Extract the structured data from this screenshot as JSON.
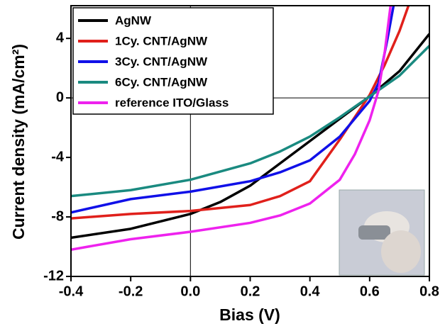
{
  "chart_data": {
    "type": "line",
    "xlabel": "Bias (V)",
    "ylabel": "Current density (mA/cm²)",
    "xlim": [
      -0.4,
      0.8
    ],
    "ylim": [
      -12,
      6.2
    ],
    "xticks": [
      -0.4,
      -0.2,
      {
        "value": 0,
        "label": "0.0"
      },
      0.2,
      0.4,
      0.6,
      0.8
    ],
    "yticks": [
      -12,
      -8,
      -4,
      0,
      4
    ],
    "legend": "upper left",
    "series": [
      {
        "name": "AgNW",
        "color": "#000000",
        "x": [
          -0.4,
          -0.2,
          0,
          0.1,
          0.2,
          0.3,
          0.4,
          0.5,
          0.6,
          0.7,
          0.8
        ],
        "values": [
          -9.4,
          -8.8,
          -7.8,
          -7.0,
          -5.9,
          -4.4,
          -2.9,
          -1.4,
          0.1,
          1.8,
          4.3
        ]
      },
      {
        "name": "1Cy. CNT/AgNW",
        "color": "#e0201b",
        "x": [
          -0.4,
          -0.2,
          0,
          0.2,
          0.3,
          0.4,
          0.5,
          0.55,
          0.6,
          0.65,
          0.7,
          0.73
        ],
        "values": [
          -8.1,
          -7.8,
          -7.6,
          -7.2,
          -6.6,
          -5.6,
          -2.8,
          -1.3,
          0.2,
          2.2,
          4.5,
          6.2
        ]
      },
      {
        "name": "3Cy. CNT/AgNW",
        "color": "#1010e8",
        "x": [
          -0.4,
          -0.2,
          0,
          0.2,
          0.3,
          0.4,
          0.5,
          0.55,
          0.6,
          0.63,
          0.66,
          0.68
        ],
        "values": [
          -7.7,
          -6.8,
          -6.3,
          -5.6,
          -5.0,
          -4.2,
          -2.6,
          -1.4,
          -0.2,
          1.0,
          4.0,
          6.2
        ]
      },
      {
        "name": "6Cy. CNT/AgNW",
        "color": "#1a8a80",
        "x": [
          -0.4,
          -0.2,
          0,
          0.2,
          0.3,
          0.4,
          0.5,
          0.6,
          0.7,
          0.8
        ],
        "values": [
          -6.6,
          -6.2,
          -5.5,
          -4.4,
          -3.6,
          -2.6,
          -1.3,
          0.1,
          1.5,
          3.5
        ]
      },
      {
        "name": "reference ITO/Glass",
        "color": "#ee22ee",
        "x": [
          -0.4,
          -0.2,
          0,
          0.2,
          0.3,
          0.4,
          0.5,
          0.55,
          0.6,
          0.63,
          0.65,
          0.67
        ],
        "values": [
          -10.2,
          -9.5,
          -9.0,
          -8.4,
          -7.9,
          -7.1,
          -5.5,
          -3.8,
          -1.5,
          0.5,
          3.0,
          6.2
        ]
      }
    ]
  }
}
